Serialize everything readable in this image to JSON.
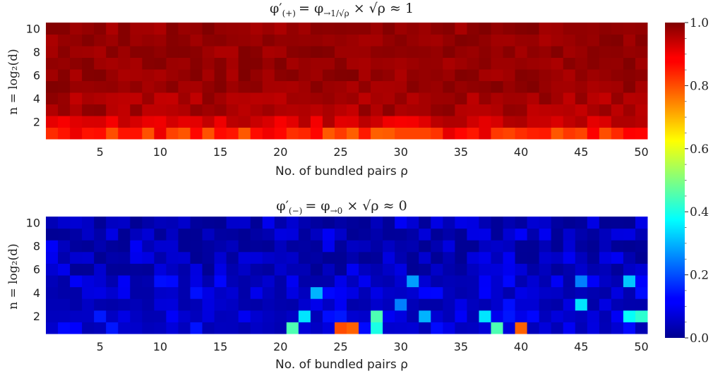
{
  "chart_data": [
    {
      "type": "heatmap",
      "title": "φ′(+) = φ→1/√ρ × √ρ ≈ 1",
      "title_parts": {
        "lhs": "φ′",
        "lhs_sub": "(+)",
        "rhs": "= φ",
        "rhs_sub": "→1/√ρ",
        "tail": " × √ρ ≈ 1"
      },
      "xlabel": "No. of bundled pairs ρ",
      "ylabel": "n = log₂(d)",
      "x": {
        "min": 1,
        "max": 50,
        "ticks": [
          5,
          10,
          15,
          20,
          25,
          30,
          35,
          40,
          45,
          50
        ]
      },
      "y": {
        "min": 1,
        "max": 10,
        "ticks": [
          2,
          4,
          6,
          8,
          10
        ]
      },
      "colormap": "jet",
      "value_range": [
        0.0,
        1.0
      ],
      "estimated_structure": "n=1 row ~0.78–0.90; n=2 row ~0.88–0.96; n≥3 rows ~0.93–1.0"
    },
    {
      "type": "heatmap",
      "title": "φ′(−) = φ→0 × √ρ ≈ 0",
      "title_parts": {
        "lhs": "φ′",
        "lhs_sub": "(−)",
        "rhs": "= φ",
        "rhs_sub": "→0",
        "tail": " × √ρ ≈ 0"
      },
      "xlabel": "No. of bundled pairs ρ",
      "ylabel": "n = log₂(d)",
      "x": {
        "min": 1,
        "max": 50,
        "ticks": [
          5,
          10,
          15,
          20,
          25,
          30,
          35,
          40,
          45,
          50
        ]
      },
      "y": {
        "min": 1,
        "max": 10,
        "ticks": [
          2,
          4,
          6,
          8,
          10
        ]
      },
      "colormap": "jet",
      "value_range": [
        0.0,
        1.0
      ],
      "highlights": [
        {
          "rho": 25,
          "n": 1,
          "value": 0.8
        },
        {
          "rho": 26,
          "n": 1,
          "value": 0.78
        },
        {
          "rho": 40,
          "n": 1,
          "value": 0.78
        },
        {
          "rho": 21,
          "n": 1,
          "value": 0.45
        },
        {
          "rho": 28,
          "n": 2,
          "value": 0.45
        },
        {
          "rho": 28,
          "n": 1,
          "value": 0.4
        },
        {
          "rho": 38,
          "n": 1,
          "value": 0.45
        },
        {
          "rho": 50,
          "n": 2,
          "value": 0.42
        },
        {
          "rho": 22,
          "n": 2,
          "value": 0.35
        },
        {
          "rho": 37,
          "n": 2,
          "value": 0.35
        },
        {
          "rho": 49,
          "n": 2,
          "value": 0.38
        },
        {
          "rho": 45,
          "n": 3,
          "value": 0.35
        },
        {
          "rho": 32,
          "n": 2,
          "value": 0.3
        },
        {
          "rho": 23,
          "n": 4,
          "value": 0.3
        },
        {
          "rho": 49,
          "n": 5,
          "value": 0.32
        },
        {
          "rho": 31,
          "n": 5,
          "value": 0.28
        },
        {
          "rho": 45,
          "n": 5,
          "value": 0.25
        },
        {
          "rho": 30,
          "n": 3,
          "value": 0.25
        },
        {
          "rho": 25,
          "n": 1,
          "value": 0.8
        }
      ]
    }
  ],
  "colorbar": {
    "ticks": [
      "0.0",
      "0.2",
      "0.4",
      "0.6",
      "0.8",
      "1.0"
    ],
    "range": [
      0.0,
      1.0
    ]
  }
}
